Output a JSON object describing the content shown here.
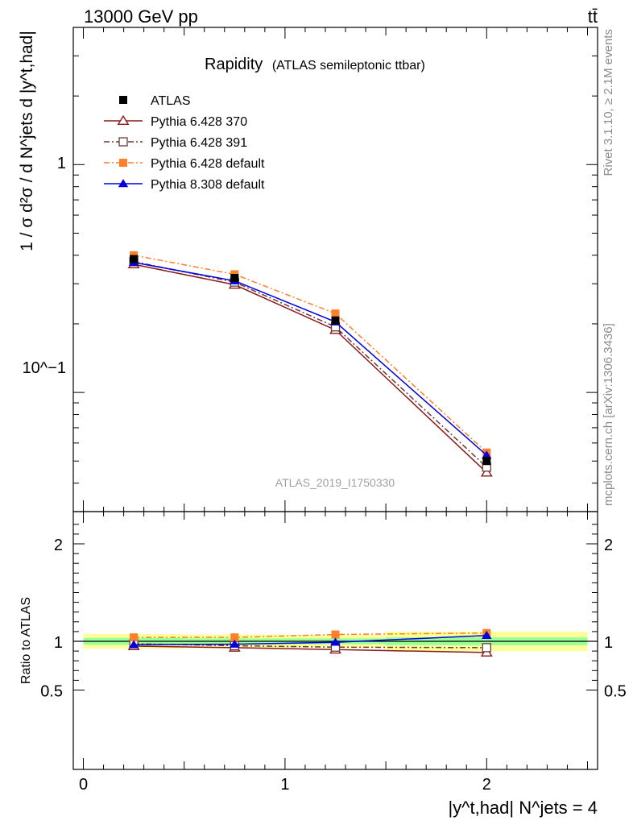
{
  "header": {
    "energy_label": "13000 GeV pp",
    "process_label": "tt̄"
  },
  "side_text": {
    "rivet": "Rivet 3.1.10, ≥ 2.1M events",
    "mcplots": "mcplots.cern.ch [arXiv:1306.3436]"
  },
  "chart_data": [
    {
      "type": "line",
      "panel": "main",
      "title": "Rapidity",
      "subtitle": "(ATLAS semileptonic ttbar)",
      "analysis_label": "ATLAS_2019_I1750330",
      "ylabel": "1 / σ d²σ / d N^jets d |y^t,had|",
      "yscale": "log",
      "ylim": [
        0.03,
        4.0
      ],
      "xlim": [
        -0.05,
        2.55
      ],
      "ytick_labels": [
        "10^−1",
        "1"
      ],
      "legend_position": "top-left",
      "x": [
        0.25,
        0.75,
        1.25,
        2.0
      ],
      "series": [
        {
          "name": "ATLAS",
          "style": "data",
          "color": "#000000",
          "marker": "filled-square",
          "values": [
            0.385,
            0.318,
            0.207,
            0.05
          ]
        },
        {
          "name": "Pythia 6.428 370",
          "color": "#8b1a1a",
          "dash": "solid",
          "marker": "open-triangle",
          "values": [
            0.365,
            0.297,
            0.188,
            0.0445
          ]
        },
        {
          "name": "Pythia 6.428 391",
          "color": "#6b3a3a",
          "dash": "dash-dot",
          "marker": "open-square",
          "values": [
            0.375,
            0.305,
            0.194,
            0.047
          ]
        },
        {
          "name": "Pythia 6.428 default",
          "color": "#ff7f2a",
          "dash": "dash-dot",
          "marker": "filled-square",
          "values": [
            0.4,
            0.33,
            0.222,
            0.0545
          ]
        },
        {
          "name": "Pythia 8.308 default",
          "color": "#0000e0",
          "dash": "solid",
          "marker": "filled-triangle",
          "values": [
            0.372,
            0.309,
            0.204,
            0.053
          ]
        }
      ]
    },
    {
      "type": "line",
      "panel": "ratio",
      "ylabel": "Ratio to ATLAS",
      "xlabel": "|y^t,had| N^jets = 4",
      "yscale": "linear",
      "ylim": [
        0.4,
        2.25
      ],
      "ytick_labels": [
        "0.5",
        "1",
        "2"
      ],
      "xtick_labels": [
        "0",
        "1",
        "2"
      ],
      "x": [
        0.25,
        0.75,
        1.25,
        2.0
      ],
      "bands": {
        "bin_edges": [
          0.0,
          0.5,
          1.0,
          1.5,
          2.5
        ],
        "yellow": [
          [
            0.925,
            1.075
          ],
          [
            0.93,
            1.07
          ],
          [
            0.935,
            1.065
          ],
          [
            0.9,
            1.1
          ]
        ],
        "green": [
          [
            0.965,
            1.035
          ],
          [
            0.97,
            1.03
          ],
          [
            0.97,
            1.03
          ],
          [
            0.96,
            1.04
          ]
        ]
      },
      "series": [
        {
          "name": "Pythia 6.428 370",
          "color": "#8b1a1a",
          "dash": "solid",
          "marker": "open-triangle",
          "values": [
            0.95,
            0.935,
            0.915,
            0.885
          ]
        },
        {
          "name": "Pythia 6.428 391",
          "color": "#6b3a3a",
          "dash": "dash-dot",
          "marker": "open-square",
          "values": [
            0.975,
            0.955,
            0.94,
            0.935
          ]
        },
        {
          "name": "Pythia 6.428 default",
          "color": "#ff7f2a",
          "dash": "dash-dot",
          "marker": "filled-square",
          "values": [
            1.04,
            1.04,
            1.07,
            1.085
          ]
        },
        {
          "name": "Pythia 8.308 default",
          "color": "#0000e0",
          "dash": "solid",
          "marker": "filled-triangle",
          "values": [
            0.965,
            0.97,
            0.99,
            1.06
          ]
        }
      ]
    }
  ]
}
